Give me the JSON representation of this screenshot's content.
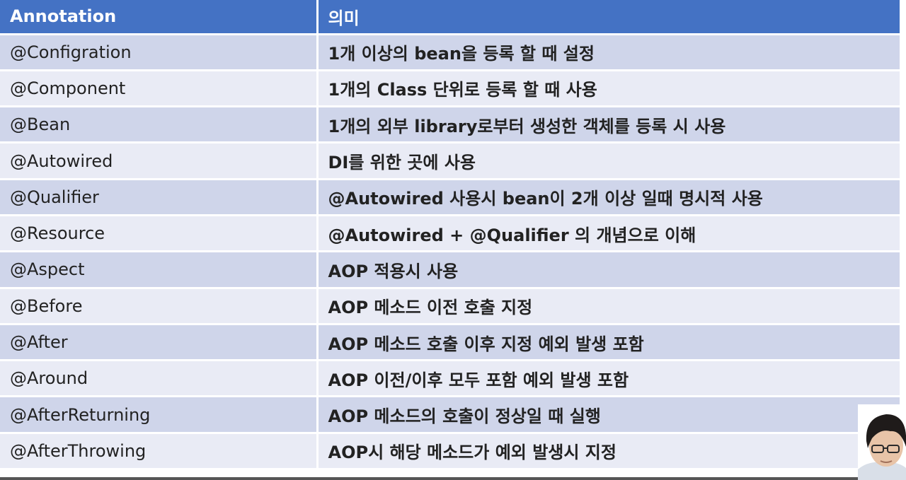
{
  "table": {
    "header": {
      "col1": "Annotation",
      "col2": "의미"
    },
    "rows": [
      {
        "annotation": "@Configration",
        "meaning": "1개 이상의 bean을 등록 할 때 설정"
      },
      {
        "annotation": "@Component",
        "meaning": "1개의 Class 단위로 등록 할 때 사용"
      },
      {
        "annotation": "@Bean",
        "meaning": "1개의 외부 library로부터 생성한 객체를 등록 시 사용"
      },
      {
        "annotation": "@Autowired",
        "meaning": "DI를 위한 곳에 사용"
      },
      {
        "annotation": "@Qualifier",
        "meaning": "@Autowired 사용시 bean이 2개 이상 일때 명시적 사용"
      },
      {
        "annotation": "@Resource",
        "meaning": "@Autowired + @Qualifier 의 개념으로 이해"
      },
      {
        "annotation": "@Aspect",
        "meaning": "AOP 적용시 사용"
      },
      {
        "annotation": "@Before",
        "meaning": "AOP 메소드 이전 호출 지정"
      },
      {
        "annotation": "@After",
        "meaning": "AOP 메소드 호출 이후 지정 예외 발생 포함"
      },
      {
        "annotation": "@Around",
        "meaning": "AOP 이전/이후 모두 포함 예외 발생 포함"
      },
      {
        "annotation": "@AfterReturning",
        "meaning": "AOP 메소드의 호출이 정상일 때 실행"
      },
      {
        "annotation": "@AfterThrowing",
        "meaning": "AOP시 해당 메소드가 예외 발생시 지정"
      }
    ]
  },
  "colors": {
    "header_bg": "#4472c4",
    "row_odd_bg": "#cfd5ea",
    "row_even_bg": "#e9ebf5"
  },
  "overlay": {
    "icon": "presenter-webcam-icon"
  }
}
